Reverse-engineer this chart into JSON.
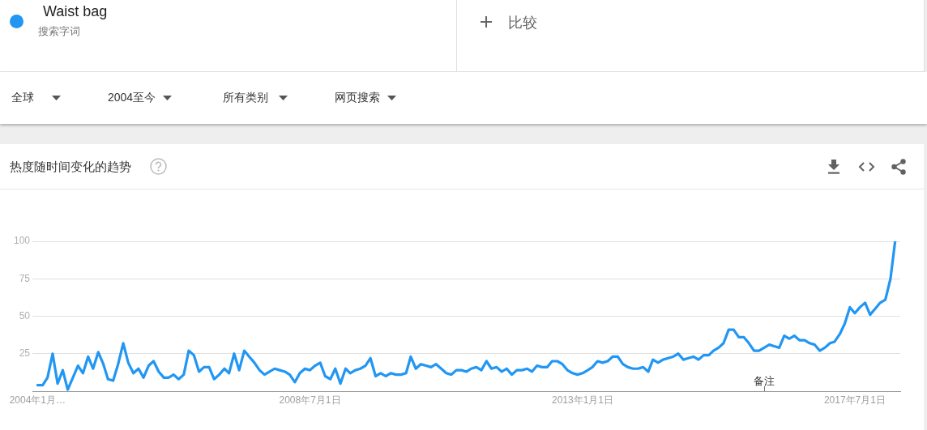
{
  "chart_data": {
    "type": "line",
    "title": "热度随时间变化的趋势",
    "annotations": [
      "搜索字词",
      "比较",
      "全球",
      "2004至今",
      "所有类别",
      "网页搜索",
      "备注"
    ],
    "x": [
      "2004-01",
      "2004-02",
      "2004-03",
      "2004-04",
      "2004-05",
      "2004-06",
      "2004-07",
      "2004-08",
      "2004-09",
      "2004-10",
      "2004-11",
      "2004-12",
      "2005-01",
      "2005-02",
      "2005-03",
      "2005-04",
      "2005-05",
      "2005-06",
      "2005-07",
      "2005-08",
      "2005-09",
      "2005-10",
      "2005-11",
      "2005-12",
      "2006-01",
      "2006-02",
      "2006-03",
      "2006-04",
      "2006-05",
      "2006-06",
      "2006-07",
      "2006-08",
      "2006-09",
      "2006-10",
      "2006-11",
      "2006-12",
      "2007-01",
      "2007-02",
      "2007-03",
      "2007-04",
      "2007-05",
      "2007-06",
      "2007-07",
      "2007-08",
      "2007-09",
      "2007-10",
      "2007-11",
      "2007-12",
      "2008-01",
      "2008-02",
      "2008-03",
      "2008-04",
      "2008-05",
      "2008-06",
      "2008-07",
      "2008-08",
      "2008-09",
      "2008-10",
      "2008-11",
      "2008-12",
      "2009-01",
      "2009-02",
      "2009-03",
      "2009-04",
      "2009-05",
      "2009-06",
      "2009-07",
      "2009-08",
      "2009-09",
      "2009-10",
      "2009-11",
      "2009-12",
      "2010-01",
      "2010-02",
      "2010-03",
      "2010-04",
      "2010-05",
      "2010-06",
      "2010-07",
      "2010-08",
      "2010-09",
      "2010-10",
      "2010-11",
      "2010-12",
      "2011-01",
      "2011-02",
      "2011-03",
      "2011-04",
      "2011-05",
      "2011-06",
      "2011-07",
      "2011-08",
      "2011-09",
      "2011-10",
      "2011-11",
      "2011-12",
      "2012-01",
      "2012-02",
      "2012-03",
      "2012-04",
      "2012-05",
      "2012-06",
      "2012-07",
      "2012-08",
      "2012-09",
      "2012-10",
      "2012-11",
      "2012-12",
      "2013-01",
      "2013-02",
      "2013-03",
      "2013-04",
      "2013-05",
      "2013-06",
      "2013-07",
      "2013-08",
      "2013-09",
      "2013-10",
      "2013-11",
      "2013-12",
      "2014-01",
      "2014-02",
      "2014-03",
      "2014-04",
      "2014-05",
      "2014-06",
      "2014-07",
      "2014-08",
      "2014-09",
      "2014-10",
      "2014-11",
      "2014-12",
      "2015-01",
      "2015-02",
      "2015-03",
      "2015-04",
      "2015-05",
      "2015-06",
      "2015-07",
      "2015-08",
      "2015-09",
      "2015-10",
      "2015-11",
      "2015-12",
      "2016-01",
      "2016-02",
      "2016-03",
      "2016-04",
      "2016-05",
      "2016-06",
      "2016-07",
      "2016-08",
      "2016-09",
      "2016-10",
      "2016-11",
      "2016-12",
      "2017-01",
      "2017-02",
      "2017-03",
      "2017-04",
      "2017-05",
      "2017-06",
      "2017-07",
      "2017-08",
      "2017-09",
      "2017-10",
      "2017-11",
      "2017-12",
      "2018-01",
      "2018-02",
      "2018-03"
    ],
    "series": [
      {
        "name": "Waist bag",
        "color": "#2196f3",
        "values": [
          4,
          4,
          9,
          25,
          5,
          14,
          1,
          9,
          17,
          12,
          23,
          15,
          26,
          18,
          8,
          7,
          18,
          32,
          19,
          12,
          15,
          9,
          17,
          20,
          13,
          9,
          9,
          11,
          8,
          11,
          27,
          24,
          13,
          16,
          16,
          8,
          11,
          15,
          12,
          25,
          14,
          27,
          23,
          19,
          14,
          11,
          13,
          15,
          14,
          13,
          11,
          6,
          12,
          15,
          14,
          17,
          19,
          10,
          8,
          15,
          5,
          15,
          12,
          14,
          15,
          17,
          22,
          10,
          12,
          10,
          12,
          11,
          11,
          12,
          23,
          15,
          18,
          17,
          16,
          18,
          15,
          12,
          11,
          14,
          14,
          13,
          15,
          16,
          14,
          20,
          15,
          16,
          13,
          15,
          11,
          14,
          14,
          15,
          13,
          17,
          16,
          16,
          20,
          20,
          18,
          14,
          12,
          11,
          12,
          14,
          16,
          20,
          19,
          20,
          23,
          23,
          18,
          16,
          15,
          15,
          16,
          13,
          21,
          19,
          21,
          22,
          23,
          25,
          21,
          22,
          23,
          21,
          24,
          24,
          27,
          29,
          32,
          41,
          41,
          36,
          36,
          32,
          27,
          27,
          29,
          31,
          30,
          29,
          37,
          35,
          37,
          34,
          34,
          32,
          31,
          27,
          29,
          32,
          33,
          38,
          45,
          56,
          52,
          56,
          59,
          51,
          55,
          59,
          61,
          75,
          100
        ]
      }
    ],
    "xlim": [
      "2003-12",
      "2018-04"
    ],
    "xticks": [
      {
        "value": "2004-01",
        "label": "2004年1月…"
      },
      {
        "value": "2008-07",
        "label": "2008年7月1日"
      },
      {
        "value": "2013-01",
        "label": "2013年1月1日"
      },
      {
        "value": "2017-07",
        "label": "2017年7月1日"
      }
    ],
    "ylim": [
      0,
      100
    ],
    "yticks": [
      {
        "value": 0,
        "label": null
      },
      25,
      50,
      75,
      100
    ],
    "grid": "y",
    "legend": "top left",
    "marker": "none",
    "line_style": "solid"
  }
}
